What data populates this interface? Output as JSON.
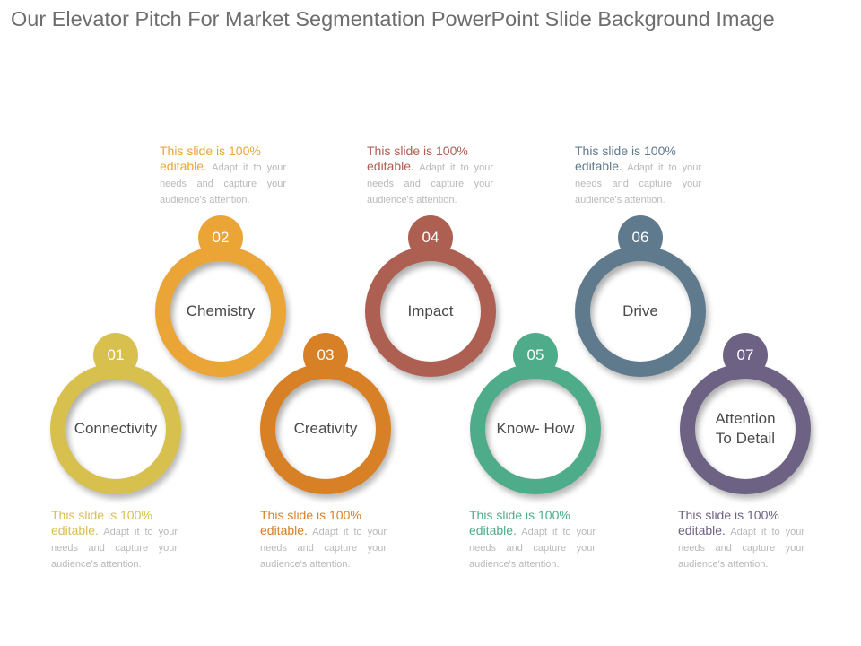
{
  "title": "Our Elevator Pitch For Market Segmentation PowerPoint Slide Background Image",
  "items": [
    {
      "number": "01",
      "label": "Connectivity",
      "color": "#d8c04e",
      "desc": {
        "line1": "This slide is 100%",
        "line2": "editable.",
        "rest": " Adapt it to your needs and capture your audience's attention."
      }
    },
    {
      "number": "02",
      "label": "Chemistry",
      "color": "#eba536",
      "desc": {
        "line1": "This slide is 100%",
        "line2": "editable.",
        "rest": " Adapt it to your needs and capture your audience's attention."
      }
    },
    {
      "number": "03",
      "label": "Creativity",
      "color": "#d88026",
      "desc": {
        "line1": "This slide is 100%",
        "line2": "editable.",
        "rest": " Adapt it to your needs and capture your audience's attention."
      }
    },
    {
      "number": "04",
      "label": "Impact",
      "color": "#ad5f51",
      "desc": {
        "line1": "This slide is 100%",
        "line2": "editable.",
        "rest": " Adapt it to your needs and capture your audience's attention."
      }
    },
    {
      "number": "05",
      "label": "Know- How",
      "color": "#4fac8a",
      "desc": {
        "line1": "This slide is 100%",
        "line2": "editable.",
        "rest": " Adapt it to your needs and capture your audience's attention."
      }
    },
    {
      "number": "06",
      "label": "Drive",
      "color": "#5f7a8c",
      "desc": {
        "line1": "This slide is 100%",
        "line2": "editable.",
        "rest": " Adapt it to your needs and capture your audience's attention."
      }
    },
    {
      "number": "07",
      "label": "Attention To Detail",
      "color": "#6d6284",
      "desc": {
        "line1": "This slide is 100%",
        "line2": "editable.",
        "rest": " Adapt it to your needs and capture your audience's attention."
      }
    }
  ]
}
